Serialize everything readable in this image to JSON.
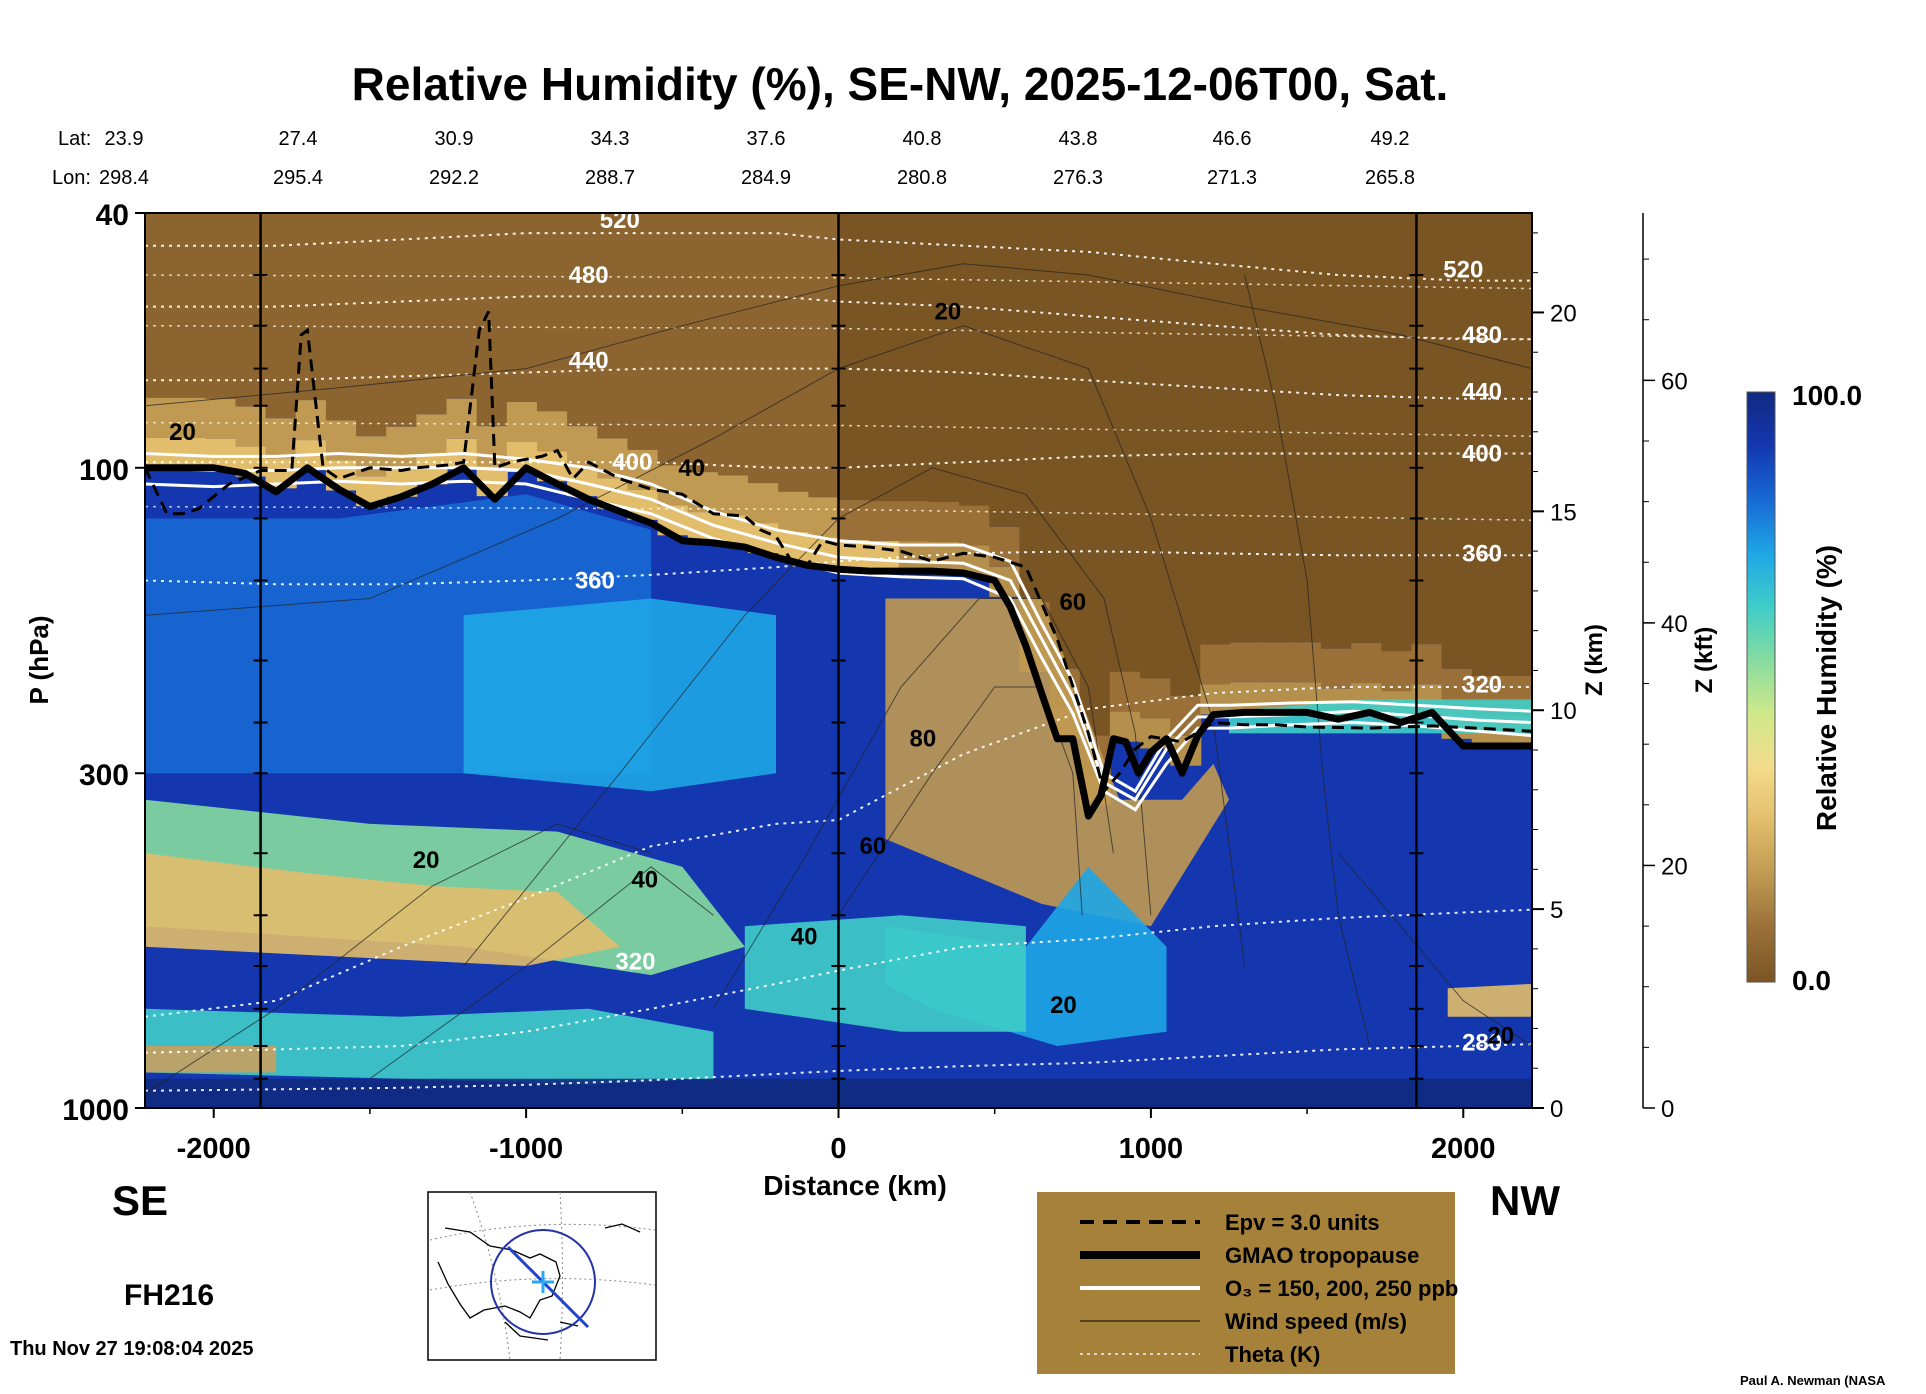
{
  "header": {
    "title": "Relative Humidity (%), SE-NW, 2025-12-06T00, Sat.",
    "lat_label": "Lat:",
    "lon_label": "Lon:",
    "lats": [
      "23.9",
      "27.4",
      "30.9",
      "34.3",
      "37.6",
      "40.8",
      "43.8",
      "46.6",
      "49.2"
    ],
    "lons": [
      "298.4",
      "295.4",
      "292.2",
      "288.7",
      "284.9",
      "280.8",
      "276.3",
      "271.3",
      "265.8"
    ]
  },
  "footer": {
    "se": "SE",
    "nw": "NW",
    "forecast_hour": "FH216",
    "timestamp": "Thu Nov 27 19:08:04 2025",
    "credit": "Paul A. Newman (NASA"
  },
  "legend": {
    "items": [
      {
        "label": "Epv = 3.0 units",
        "style": "dashed"
      },
      {
        "label": "GMAO tropopause",
        "style": "thick"
      },
      {
        "label": "O₃ = 150, 200, 250 ppb",
        "style": "white"
      },
      {
        "label": "Wind speed (m/s)",
        "style": "thin"
      },
      {
        "label": "Theta (K)",
        "style": "dotted"
      }
    ]
  },
  "colorbar": {
    "label": "Relative Humidity (%)",
    "max_label": "100.0",
    "min_label": "0.0",
    "stops": [
      "#7a5524",
      "#9a7038",
      "#c09a52",
      "#e2bd6c",
      "#f3dc8c",
      "#cfe88a",
      "#86dca0",
      "#3fcdc8",
      "#1ea6e6",
      "#1769d4",
      "#1437b0",
      "#102a80"
    ]
  },
  "chart_data": {
    "type": "heatmap",
    "title": "Relative Humidity (%), SE-NW, 2025-12-06T00, Sat.",
    "xlabel": "Distance (km)",
    "ylabel": "P (hPa)",
    "y2label": "Z (km)",
    "y3label": "Z (kft)",
    "xlim": [
      -2220,
      2220
    ],
    "ylim_hpa": [
      1000,
      40
    ],
    "y_scale": "log",
    "x_ticks": [
      -2000,
      -1000,
      0,
      1000,
      2000
    ],
    "x_tick_labels": [
      "-2000",
      "-1000",
      "0",
      "1000",
      "2000"
    ],
    "p_ticks": [
      40,
      100,
      300,
      1000
    ],
    "p_tick_labels": [
      "40",
      "100",
      "300",
      "1000"
    ],
    "z_km_ticks": [
      0,
      5,
      10,
      15,
      20
    ],
    "z_km_tick_labels": [
      "0",
      "5",
      "10",
      "15",
      "20"
    ],
    "z_kft_ticks": [
      0,
      20,
      40,
      60
    ],
    "z_kft_tick_labels": [
      "0",
      "20",
      "40",
      "60"
    ],
    "vertical_lines_km": [
      -1850,
      0,
      1850
    ],
    "tropopause": {
      "name": "GMAO tropopause",
      "x": [
        -2220,
        -2000,
        -1900,
        -1800,
        -1700,
        -1600,
        -1500,
        -1400,
        -1300,
        -1200,
        -1100,
        -1000,
        -900,
        -800,
        -700,
        -600,
        -500,
        -400,
        -300,
        -200,
        -100,
        0,
        100,
        200,
        300,
        400,
        500,
        550,
        600,
        650,
        700,
        750,
        800,
        840,
        880,
        920,
        960,
        1000,
        1050,
        1100,
        1150,
        1200,
        1300,
        1400,
        1500,
        1600,
        1700,
        1800,
        1900,
        2000,
        2100,
        2220
      ],
      "p": [
        100,
        100,
        102,
        109,
        100,
        108,
        115,
        111,
        106,
        100,
        112,
        100,
        106,
        112,
        117,
        122,
        130,
        131,
        133,
        138,
        142,
        144,
        145,
        145,
        145,
        146,
        150,
        165,
        190,
        225,
        265,
        265,
        350,
        325,
        265,
        268,
        300,
        278,
        265,
        300,
        262,
        243,
        241,
        241,
        241,
        247,
        241,
        250,
        241,
        272,
        272,
        272
      ]
    },
    "o3_contours": {
      "name": "O₃ = 150, 200, 250 ppb",
      "x": [
        -2220,
        -2000,
        -1800,
        -1600,
        -1400,
        -1200,
        -1000,
        -800,
        -600,
        -400,
        -200,
        0,
        200,
        400,
        550,
        650,
        750,
        850,
        950,
        1050,
        1150,
        1250,
        1450,
        1650,
        1850,
        2050,
        2220
      ],
      "p_levels": [
        [
          95,
          96,
          96,
          95,
          96,
          95,
          97,
          100,
          106,
          117,
          125,
          130,
          132,
          132,
          140,
          175,
          215,
          300,
          320,
          265,
          235,
          235,
          233,
          232,
          235,
          238,
          240
        ],
        [
          100,
          101,
          101,
          100,
          100,
          100,
          101,
          106,
          112,
          123,
          131,
          138,
          140,
          141,
          150,
          185,
          228,
          310,
          330,
          275,
          245,
          245,
          243,
          240,
          244,
          248,
          250
        ],
        [
          106,
          107,
          106,
          105,
          106,
          105,
          106,
          112,
          118,
          129,
          138,
          146,
          148,
          149,
          160,
          198,
          242,
          320,
          342,
          290,
          255,
          255,
          252,
          250,
          253,
          258,
          262
        ]
      ]
    },
    "epv": {
      "name": "Epv = 3.0 units",
      "x": [
        -2220,
        -2150,
        -2100,
        -2050,
        -1950,
        -1850,
        -1750,
        -1720,
        -1700,
        -1650,
        -1600,
        -1500,
        -1400,
        -1350,
        -1250,
        -1200,
        -1150,
        -1120,
        -1100,
        -1050,
        -950,
        -900,
        -850,
        -800,
        -700,
        -600,
        -500,
        -400,
        -300,
        -250,
        -200,
        -150,
        -100,
        -50,
        0,
        100,
        200,
        300,
        400,
        500,
        600,
        700,
        800,
        850,
        900,
        950,
        1000,
        1100,
        1200,
        1300,
        1400,
        1500,
        1700,
        1900,
        2100,
        2220
      ],
      "p": [
        100,
        118,
        118,
        116,
        106,
        101,
        101,
        62,
        61,
        100,
        104,
        100,
        101,
        100,
        99,
        98,
        61,
        57,
        100,
        98,
        96,
        94,
        104,
        98,
        104,
        108,
        110,
        118,
        119,
        125,
        128,
        140,
        142,
        130,
        132,
        133,
        135,
        140,
        136,
        138,
        143,
        185,
        260,
        320,
        300,
        275,
        263,
        268,
        250,
        252,
        252,
        254,
        255,
        253,
        256,
        258
      ]
    },
    "theta": {
      "name": "Theta (K)",
      "x": [
        -2220,
        -1800,
        -1400,
        -1000,
        -600,
        -200,
        0,
        400,
        800,
        1200,
        1600,
        2000,
        2220
      ],
      "levels": [
        {
          "k": 280,
          "p": [
            940,
            935,
            930,
            920,
            905,
            885,
            875,
            860,
            850,
            830,
            810,
            800,
            795
          ]
        },
        {
          "k": 300,
          "p": [
            820,
            810,
            800,
            760,
            700,
            640,
            610,
            560,
            545,
            520,
            505,
            495,
            490
          ]
        },
        {
          "k": 320,
          "p": [
            720,
            680,
            560,
            470,
            390,
            360,
            355,
            280,
            238,
            225,
            220,
            220,
            220
          ]
        },
        {
          "k": 360,
          "p": [
            150,
            152,
            152,
            150,
            147,
            143,
            140,
            136,
            135,
            136,
            137,
            137,
            137
          ]
        },
        {
          "k": 400,
          "p": [
            98,
            98,
            98,
            98,
            98,
            100,
            100,
            98,
            96,
            95,
            95,
            95,
            95
          ]
        },
        {
          "k": 440,
          "p": [
            73,
            73,
            72,
            71,
            70,
            70,
            70,
            71,
            73,
            75,
            77,
            78,
            78
          ]
        },
        {
          "k": 480,
          "p": [
            56,
            56,
            55,
            54,
            54,
            54,
            55,
            56,
            58,
            60,
            62,
            63,
            63
          ]
        },
        {
          "k": 520,
          "p": [
            45,
            45,
            44,
            43,
            43,
            43,
            44,
            45,
            46,
            48,
            50,
            51,
            51
          ]
        }
      ],
      "labels": [
        {
          "text": "520",
          "x": -700,
          "p": 41
        },
        {
          "text": "480",
          "x": -800,
          "p": 50
        },
        {
          "text": "440",
          "x": -800,
          "p": 68
        },
        {
          "text": "400",
          "x": -660,
          "p": 98
        },
        {
          "text": "360",
          "x": -780,
          "p": 150
        },
        {
          "text": "320",
          "x": -650,
          "p": 590
        },
        {
          "text": "520",
          "x": 2000,
          "p": 49
        },
        {
          "text": "480",
          "x": 2060,
          "p": 62
        },
        {
          "text": "440",
          "x": 2060,
          "p": 76
        },
        {
          "text": "400",
          "x": 2060,
          "p": 95
        },
        {
          "text": "360",
          "x": 2060,
          "p": 136
        },
        {
          "text": "320",
          "x": 2060,
          "p": 218
        },
        {
          "text": "280",
          "x": 2060,
          "p": 790
        }
      ]
    },
    "wind_labels": [
      {
        "text": "20",
        "x": -2100,
        "p": 88
      },
      {
        "text": "40",
        "x": -470,
        "p": 100
      },
      {
        "text": "20",
        "x": 350,
        "p": 57
      },
      {
        "text": "60",
        "x": 750,
        "p": 162
      },
      {
        "text": "80",
        "x": 270,
        "p": 265
      },
      {
        "text": "60",
        "x": 110,
        "p": 390
      },
      {
        "text": "20",
        "x": -1320,
        "p": 410
      },
      {
        "text": "40",
        "x": -620,
        "p": 440
      },
      {
        "text": "40",
        "x": -110,
        "p": 540
      },
      {
        "text": "20",
        "x": 720,
        "p": 690
      },
      {
        "text": "20",
        "x": 2120,
        "p": 770
      }
    ]
  }
}
